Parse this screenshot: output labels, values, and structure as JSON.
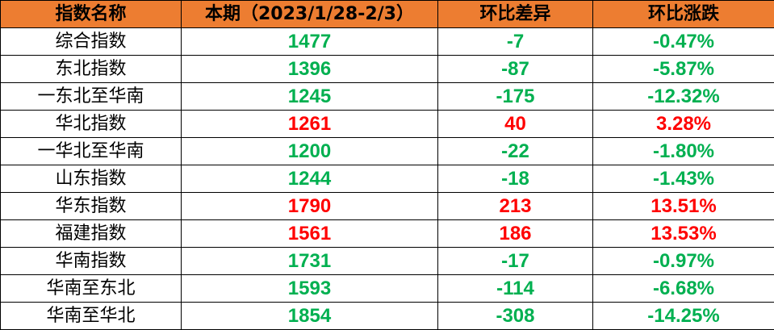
{
  "headers": [
    "指数名称",
    "本期（2023/1/28-2/3）",
    "环比差异",
    "环比涨跌"
  ],
  "colors": {
    "header_bg": "#ED7D31",
    "up": "#FF0000",
    "down": "#00B050"
  },
  "rows": [
    {
      "name": "综合指数",
      "value": "1477",
      "diff": "-7",
      "pct": "-0.47%",
      "trend": "down"
    },
    {
      "name": "东北指数",
      "value": "1396",
      "diff": "-87",
      "pct": "-5.87%",
      "trend": "down"
    },
    {
      "name": "一东北至华南",
      "value": "1245",
      "diff": "-175",
      "pct": "-12.32%",
      "trend": "down"
    },
    {
      "name": "华北指数",
      "value": "1261",
      "diff": "40",
      "pct": "3.28%",
      "trend": "up"
    },
    {
      "name": "一华北至华南",
      "value": "1200",
      "diff": "-22",
      "pct": "-1.80%",
      "trend": "down"
    },
    {
      "name": "山东指数",
      "value": "1244",
      "diff": "-18",
      "pct": "-1.43%",
      "trend": "down"
    },
    {
      "name": "华东指数",
      "value": "1790",
      "diff": "213",
      "pct": "13.51%",
      "trend": "up"
    },
    {
      "name": "福建指数",
      "value": "1561",
      "diff": "186",
      "pct": "13.53%",
      "trend": "up"
    },
    {
      "name": "华南指数",
      "value": "1731",
      "diff": "-17",
      "pct": "-0.97%",
      "trend": "down"
    },
    {
      "name": "华南至东北",
      "value": "1593",
      "diff": "-114",
      "pct": "-6.68%",
      "trend": "down"
    },
    {
      "name": "华南至华北",
      "value": "1854",
      "diff": "-308",
      "pct": "-14.25%",
      "trend": "down"
    }
  ]
}
